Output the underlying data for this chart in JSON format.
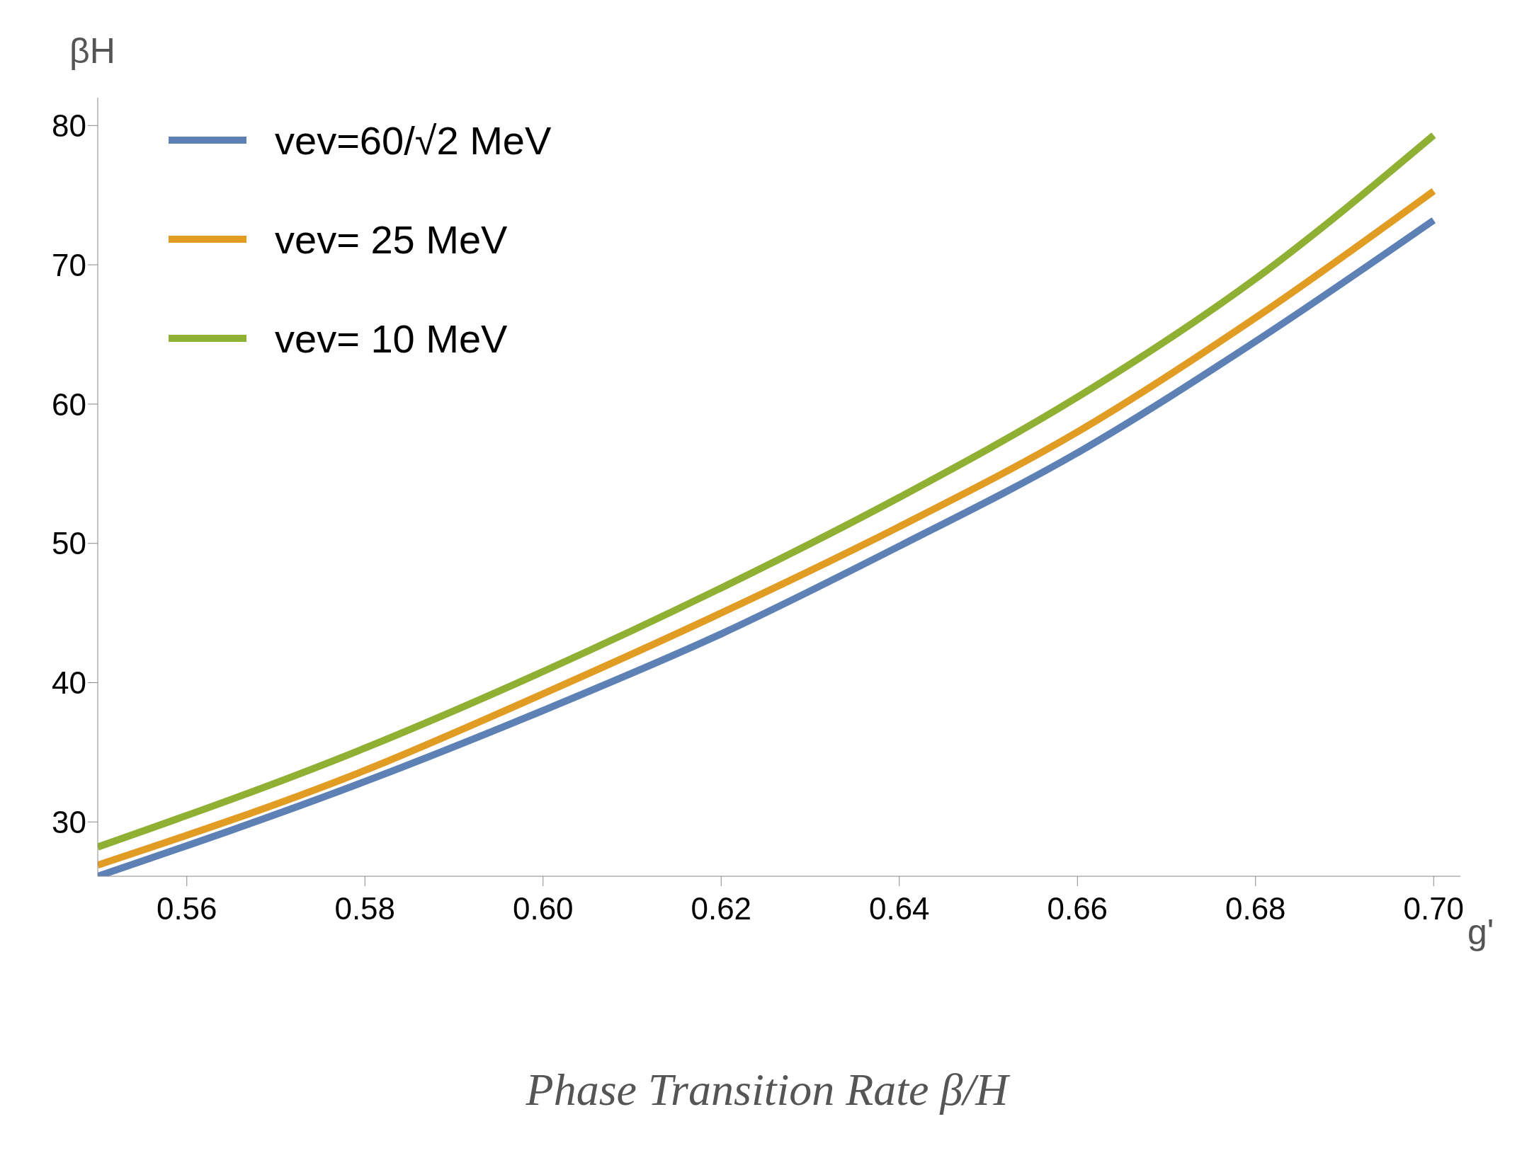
{
  "chart_data": {
    "type": "line",
    "ylabel": "βH",
    "xlabel": "g'",
    "annotations": [
      "Phase Transition Rate β/H"
    ],
    "x": [
      0.55,
      0.58,
      0.6,
      0.62,
      0.64,
      0.66,
      0.68,
      0.7
    ],
    "series": [
      {
        "name": "vev=60/√2 MeV",
        "color": "#5e81b5",
        "values": [
          26.1,
          32.9,
          38.0,
          43.5,
          49.8,
          56.5,
          64.5,
          73.2
        ]
      },
      {
        "name": "vev= 25 MeV",
        "color": "#e19c24",
        "values": [
          26.9,
          33.7,
          39.2,
          45.0,
          51.2,
          58.0,
          66.2,
          75.3
        ]
      },
      {
        "name": "vev= 10 MeV",
        "color": "#8fb032",
        "values": [
          28.2,
          35.3,
          40.8,
          46.8,
          53.3,
          60.5,
          69.0,
          79.3
        ]
      }
    ],
    "xlim": [
      0.55,
      0.703
    ],
    "ylim": [
      26.1,
      82
    ],
    "xticks": [
      {
        "value": 0.56,
        "label": "0.56"
      },
      {
        "value": 0.58,
        "label": "0.58"
      },
      {
        "value": 0.6,
        "label": "0.60"
      },
      {
        "value": 0.62,
        "label": "0.62"
      },
      {
        "value": 0.64,
        "label": "0.64"
      },
      {
        "value": 0.66,
        "label": "0.66"
      },
      {
        "value": 0.68,
        "label": "0.68"
      },
      {
        "value": 0.7,
        "label": "0.70"
      }
    ],
    "yticks": [
      30,
      40,
      50,
      60,
      70,
      80
    ],
    "grid": false,
    "legend": "top left",
    "marker": "none",
    "line_style": "solid"
  }
}
